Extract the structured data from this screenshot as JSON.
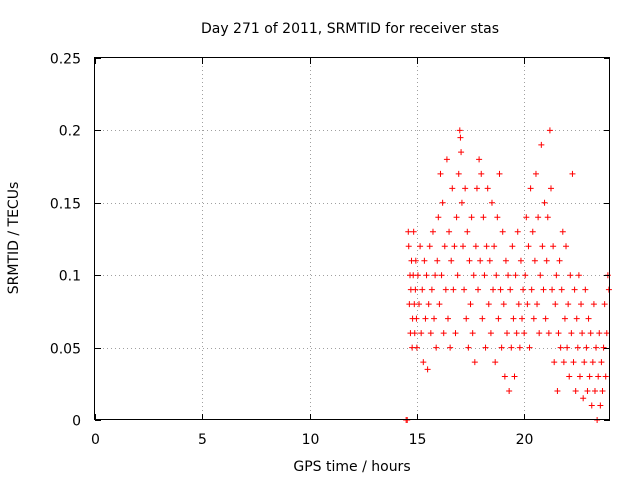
{
  "chart_data": {
    "type": "scatter",
    "title": "Day 271 of 2011, SRMTID for receiver stas",
    "xlabel": "GPS time / hours",
    "ylabel": "SRMTID / TECUs",
    "xlim": [
      0,
      24
    ],
    "ylim": [
      0,
      0.25
    ],
    "xticks": [
      0,
      5,
      10,
      15,
      20
    ],
    "xtick_labels": [
      "0",
      "5",
      "10",
      "15",
      "20"
    ],
    "yticks": [
      0,
      0.05,
      0.1,
      0.15,
      0.2,
      0.25
    ],
    "ytick_labels": [
      "0",
      "0.05",
      "0.1",
      "0.15",
      "0.2",
      "0.25"
    ],
    "grid": true,
    "marker": "+",
    "series": [
      {
        "name": "SRMTID",
        "color": "#ff0000",
        "points": [
          [
            14.5,
            0.0
          ],
          [
            14.55,
            0.0
          ],
          [
            14.6,
            0.13
          ],
          [
            14.62,
            0.12
          ],
          [
            14.65,
            0.08
          ],
          [
            14.68,
            0.1
          ],
          [
            14.7,
            0.06
          ],
          [
            14.72,
            0.09
          ],
          [
            14.75,
            0.11
          ],
          [
            14.78,
            0.05
          ],
          [
            14.8,
            0.07
          ],
          [
            14.83,
            0.1
          ],
          [
            14.85,
            0.13
          ],
          [
            14.88,
            0.08
          ],
          [
            14.9,
            0.06
          ],
          [
            14.93,
            0.09
          ],
          [
            14.95,
            0.11
          ],
          [
            14.98,
            0.07
          ],
          [
            15.0,
            0.05
          ],
          [
            15.05,
            0.1
          ],
          [
            15.1,
            0.08
          ],
          [
            15.15,
            0.12
          ],
          [
            15.2,
            0.06
          ],
          [
            15.25,
            0.09
          ],
          [
            15.3,
            0.04
          ],
          [
            15.35,
            0.11
          ],
          [
            15.4,
            0.07
          ],
          [
            15.45,
            0.1
          ],
          [
            15.5,
            0.035
          ],
          [
            15.55,
            0.08
          ],
          [
            15.6,
            0.12
          ],
          [
            15.65,
            0.06
          ],
          [
            15.7,
            0.09
          ],
          [
            15.75,
            0.13
          ],
          [
            15.8,
            0.07
          ],
          [
            15.85,
            0.1
          ],
          [
            15.9,
            0.05
          ],
          [
            15.95,
            0.11
          ],
          [
            16.0,
            0.14
          ],
          [
            16.05,
            0.08
          ],
          [
            16.1,
            0.17
          ],
          [
            16.15,
            0.1
          ],
          [
            16.2,
            0.15
          ],
          [
            16.25,
            0.06
          ],
          [
            16.3,
            0.12
          ],
          [
            16.35,
            0.09
          ],
          [
            16.4,
            0.18
          ],
          [
            16.45,
            0.07
          ],
          [
            16.5,
            0.13
          ],
          [
            16.55,
            0.05
          ],
          [
            16.6,
            0.11
          ],
          [
            16.65,
            0.16
          ],
          [
            16.7,
            0.09
          ],
          [
            16.75,
            0.12
          ],
          [
            16.8,
            0.06
          ],
          [
            16.85,
            0.14
          ],
          [
            16.9,
            0.1
          ],
          [
            16.95,
            0.17
          ],
          [
            17.0,
            0.2
          ],
          [
            17.03,
            0.195
          ],
          [
            17.06,
            0.185
          ],
          [
            17.1,
            0.15
          ],
          [
            17.15,
            0.12
          ],
          [
            17.2,
            0.09
          ],
          [
            17.25,
            0.16
          ],
          [
            17.3,
            0.07
          ],
          [
            17.35,
            0.13
          ],
          [
            17.4,
            0.05
          ],
          [
            17.45,
            0.11
          ],
          [
            17.5,
            0.08
          ],
          [
            17.55,
            0.14
          ],
          [
            17.6,
            0.06
          ],
          [
            17.65,
            0.1
          ],
          [
            17.7,
            0.04
          ],
          [
            17.75,
            0.12
          ],
          [
            17.8,
            0.16
          ],
          [
            17.85,
            0.09
          ],
          [
            17.9,
            0.18
          ],
          [
            17.95,
            0.11
          ],
          [
            18.0,
            0.17
          ],
          [
            18.05,
            0.07
          ],
          [
            18.1,
            0.14
          ],
          [
            18.15,
            0.1
          ],
          [
            18.2,
            0.05
          ],
          [
            18.25,
            0.12
          ],
          [
            18.3,
            0.16
          ],
          [
            18.35,
            0.08
          ],
          [
            18.4,
            0.11
          ],
          [
            18.45,
            0.06
          ],
          [
            18.5,
            0.15
          ],
          [
            18.55,
            0.09
          ],
          [
            18.6,
            0.12
          ],
          [
            18.65,
            0.04
          ],
          [
            18.7,
            0.1
          ],
          [
            18.75,
            0.14
          ],
          [
            18.8,
            0.07
          ],
          [
            18.85,
            0.17
          ],
          [
            18.9,
            0.09
          ],
          [
            18.95,
            0.05
          ],
          [
            19.0,
            0.13
          ],
          [
            19.05,
            0.08
          ],
          [
            19.1,
            0.03
          ],
          [
            19.15,
            0.11
          ],
          [
            19.2,
            0.06
          ],
          [
            19.25,
            0.1
          ],
          [
            19.3,
            0.02
          ],
          [
            19.35,
            0.09
          ],
          [
            19.4,
            0.05
          ],
          [
            19.45,
            0.12
          ],
          [
            19.5,
            0.07
          ],
          [
            19.55,
            0.03
          ],
          [
            19.6,
            0.1
          ],
          [
            19.65,
            0.06
          ],
          [
            19.7,
            0.13
          ],
          [
            19.75,
            0.08
          ],
          [
            19.8,
            0.05
          ],
          [
            19.85,
            0.11
          ],
          [
            19.9,
            0.07
          ],
          [
            19.95,
            0.09
          ],
          [
            20.0,
            0.06
          ],
          [
            20.05,
            0.1
          ],
          [
            20.1,
            0.14
          ],
          [
            20.15,
            0.08
          ],
          [
            20.2,
            0.12
          ],
          [
            20.25,
            0.05
          ],
          [
            20.3,
            0.16
          ],
          [
            20.35,
            0.09
          ],
          [
            20.4,
            0.13
          ],
          [
            20.45,
            0.07
          ],
          [
            20.5,
            0.11
          ],
          [
            20.55,
            0.17
          ],
          [
            20.6,
            0.08
          ],
          [
            20.65,
            0.14
          ],
          [
            20.7,
            0.06
          ],
          [
            20.75,
            0.1
          ],
          [
            20.8,
            0.19
          ],
          [
            20.85,
            0.12
          ],
          [
            20.9,
            0.09
          ],
          [
            20.95,
            0.15
          ],
          [
            21.0,
            0.07
          ],
          [
            21.05,
            0.11
          ],
          [
            21.1,
            0.14
          ],
          [
            21.15,
            0.06
          ],
          [
            21.2,
            0.2
          ],
          [
            21.25,
            0.16
          ],
          [
            21.3,
            0.09
          ],
          [
            21.35,
            0.12
          ],
          [
            21.4,
            0.04
          ],
          [
            21.45,
            0.08
          ],
          [
            21.5,
            0.1
          ],
          [
            21.55,
            0.02
          ],
          [
            21.6,
            0.06
          ],
          [
            21.65,
            0.11
          ],
          [
            21.7,
            0.05
          ],
          [
            21.75,
            0.09
          ],
          [
            21.8,
            0.13
          ],
          [
            21.85,
            0.04
          ],
          [
            21.9,
            0.07
          ],
          [
            21.95,
            0.12
          ],
          [
            22.0,
            0.05
          ],
          [
            22.05,
            0.08
          ],
          [
            22.1,
            0.03
          ],
          [
            22.15,
            0.1
          ],
          [
            22.2,
            0.06
          ],
          [
            22.25,
            0.17
          ],
          [
            22.3,
            0.04
          ],
          [
            22.35,
            0.09
          ],
          [
            22.4,
            0.02
          ],
          [
            22.45,
            0.07
          ],
          [
            22.5,
            0.05
          ],
          [
            22.55,
            0.1
          ],
          [
            22.6,
            0.03
          ],
          [
            22.65,
            0.08
          ],
          [
            22.7,
            0.06
          ],
          [
            22.75,
            0.015
          ],
          [
            22.8,
            0.04
          ],
          [
            22.85,
            0.09
          ],
          [
            22.9,
            0.05
          ],
          [
            22.95,
            0.02
          ],
          [
            23.0,
            0.07
          ],
          [
            23.05,
            0.03
          ],
          [
            23.1,
            0.06
          ],
          [
            23.15,
            0.01
          ],
          [
            23.2,
            0.04
          ],
          [
            23.25,
            0.08
          ],
          [
            23.3,
            0.02
          ],
          [
            23.35,
            0.05
          ],
          [
            23.4,
            0.0
          ],
          [
            23.45,
            0.03
          ],
          [
            23.5,
            0.06
          ],
          [
            23.55,
            0.01
          ],
          [
            23.6,
            0.04
          ],
          [
            23.65,
            0.02
          ],
          [
            23.7,
            0.05
          ],
          [
            23.75,
            0.08
          ],
          [
            23.8,
            0.03
          ],
          [
            23.85,
            0.06
          ],
          [
            23.9,
            0.1
          ],
          [
            23.95,
            0.09
          ]
        ]
      }
    ]
  }
}
